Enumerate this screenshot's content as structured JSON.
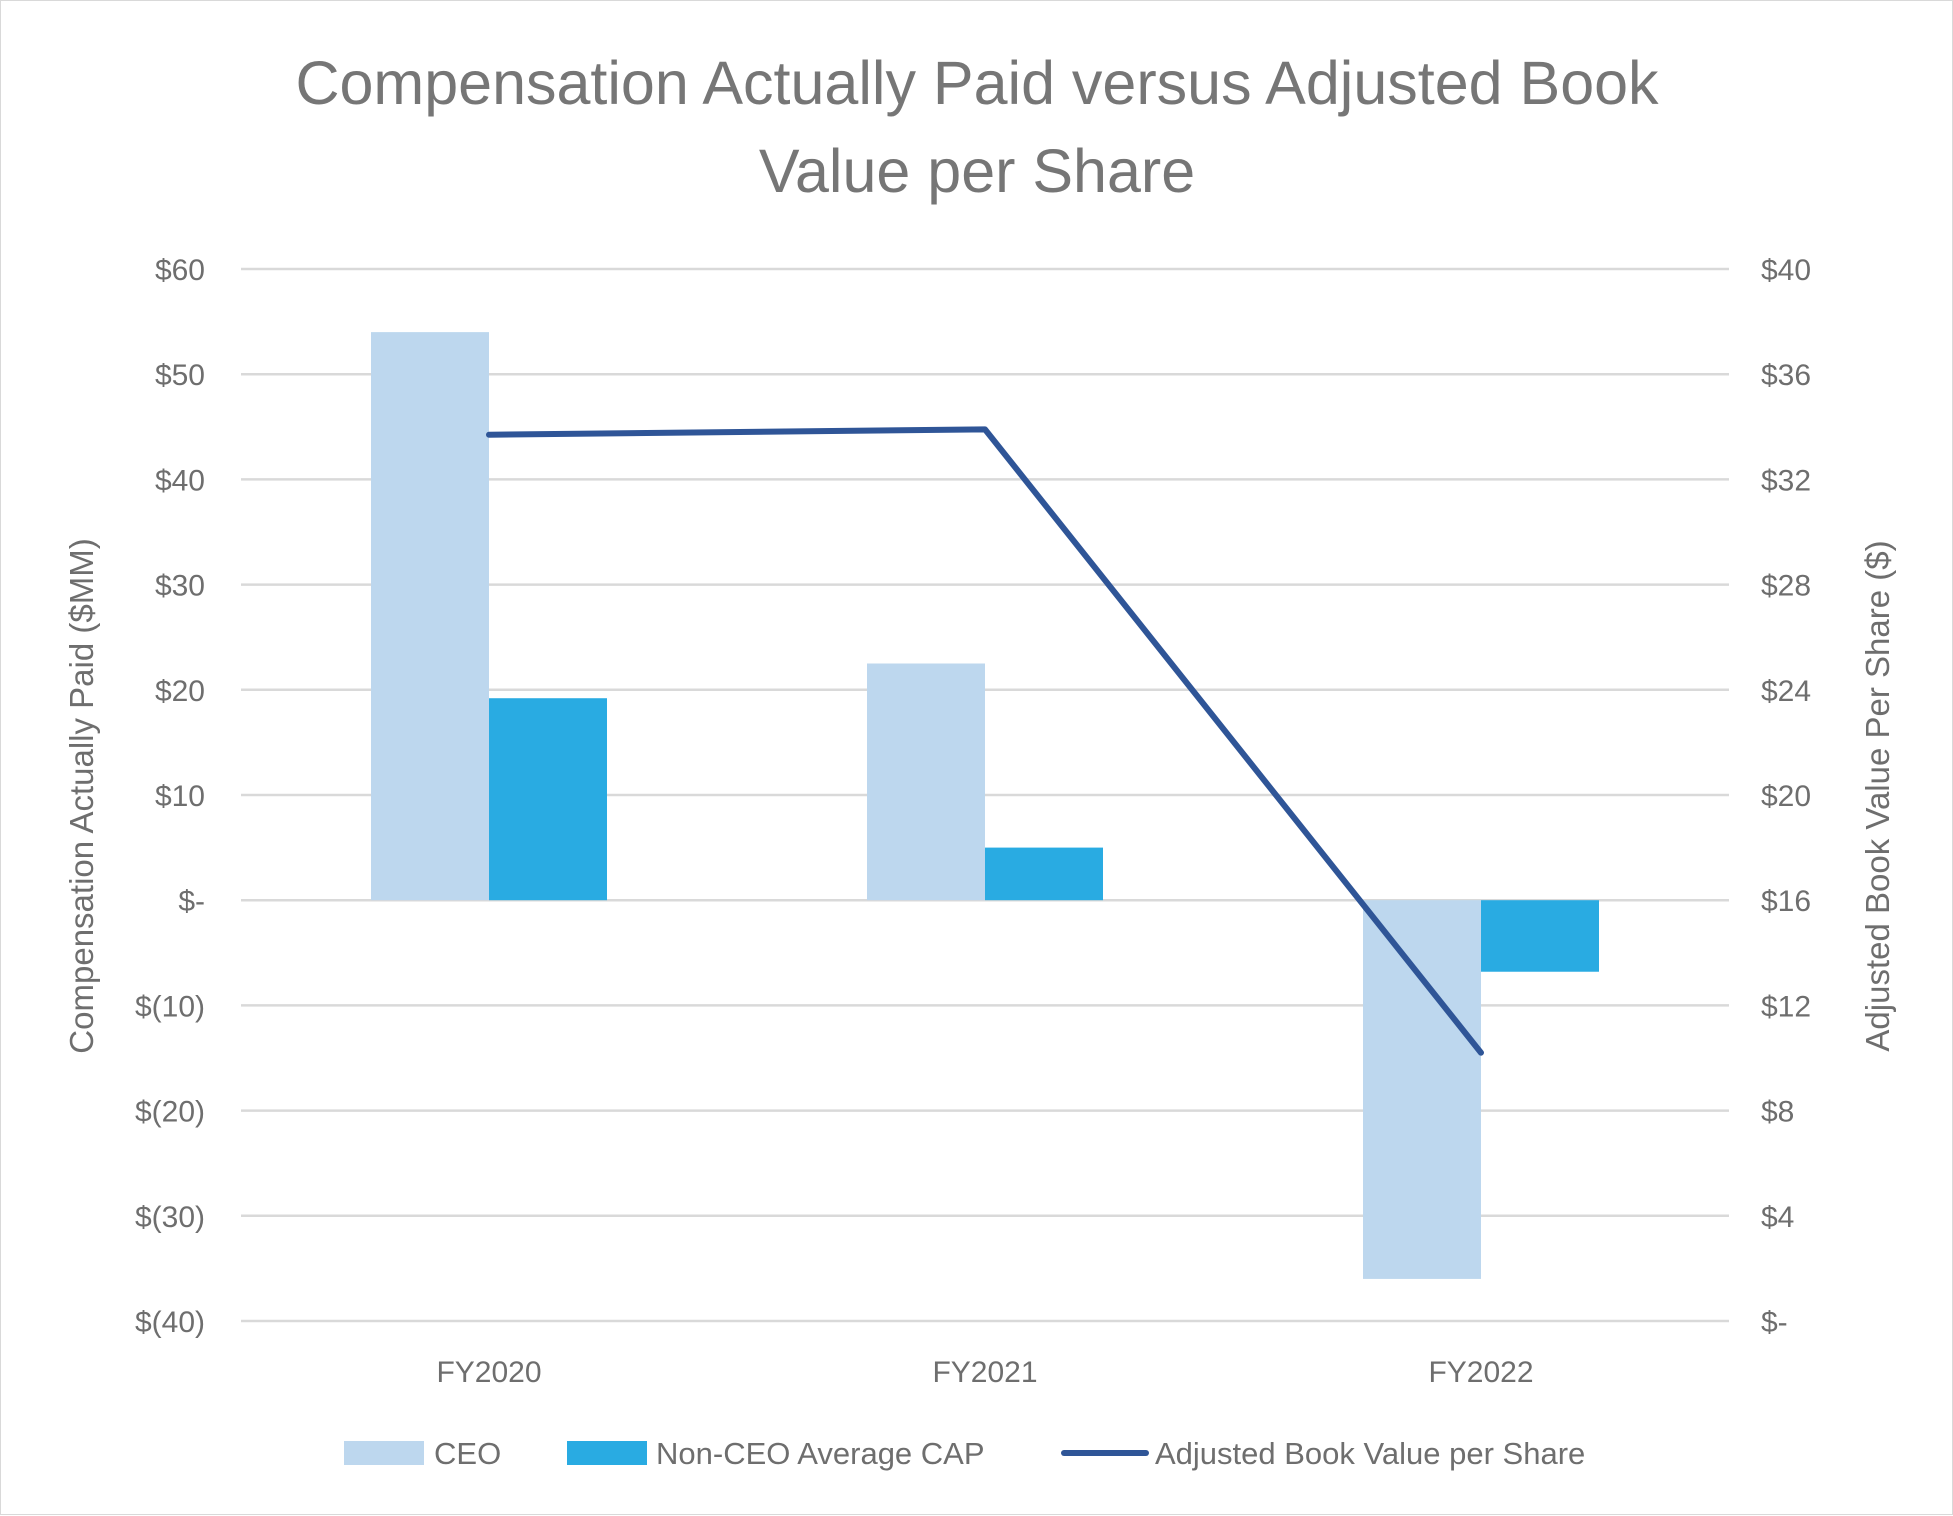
{
  "chart_data": {
    "type": "bar",
    "title": "Compensation Actually Paid versus Adjusted Book Value per Share",
    "title_lines": [
      "Compensation Actually Paid versus Adjusted Book",
      "Value per Share"
    ],
    "categories": [
      "FY2020",
      "FY2021",
      "FY2022"
    ],
    "ylabel": "Compensation Actually Paid ($MM)",
    "y2label": "Adjusted Book Value Per Share ($)",
    "ylim": [
      -40,
      60
    ],
    "y2lim": [
      0,
      40
    ],
    "y_ticks": [
      {
        "value": 60,
        "label": "$60"
      },
      {
        "value": 50,
        "label": "$50"
      },
      {
        "value": 40,
        "label": "$40"
      },
      {
        "value": 30,
        "label": "$30"
      },
      {
        "value": 20,
        "label": "$20"
      },
      {
        "value": 10,
        "label": "$10"
      },
      {
        "value": 0,
        "label": "$-"
      },
      {
        "value": -10,
        "label": "$(10)"
      },
      {
        "value": -20,
        "label": "$(20)"
      },
      {
        "value": -30,
        "label": "$(30)"
      },
      {
        "value": -40,
        "label": "$(40)"
      }
    ],
    "y2_ticks": [
      {
        "value": 40,
        "label": "$40"
      },
      {
        "value": 36,
        "label": "$36"
      },
      {
        "value": 32,
        "label": "$32"
      },
      {
        "value": 28,
        "label": "$28"
      },
      {
        "value": 24,
        "label": "$24"
      },
      {
        "value": 20,
        "label": "$20"
      },
      {
        "value": 16,
        "label": "$16"
      },
      {
        "value": 12,
        "label": "$12"
      },
      {
        "value": 8,
        "label": "$8"
      },
      {
        "value": 4,
        "label": "$4"
      },
      {
        "value": 0,
        "label": "$-"
      }
    ],
    "series": [
      {
        "name": "CEO",
        "type": "bar",
        "axis": "left",
        "color": "#bdd7ee",
        "values": [
          54.0,
          22.5,
          -36.0
        ]
      },
      {
        "name": "Non-CEO Average CAP",
        "type": "bar",
        "axis": "left",
        "color": "#29abe2",
        "values": [
          19.2,
          5.0,
          -6.8
        ]
      },
      {
        "name": "Adjusted Book Value per Share",
        "type": "line",
        "axis": "right",
        "color": "#2f5597",
        "values": [
          33.7,
          33.9,
          10.2
        ]
      }
    ],
    "grid": true,
    "legend_position": "bottom"
  }
}
